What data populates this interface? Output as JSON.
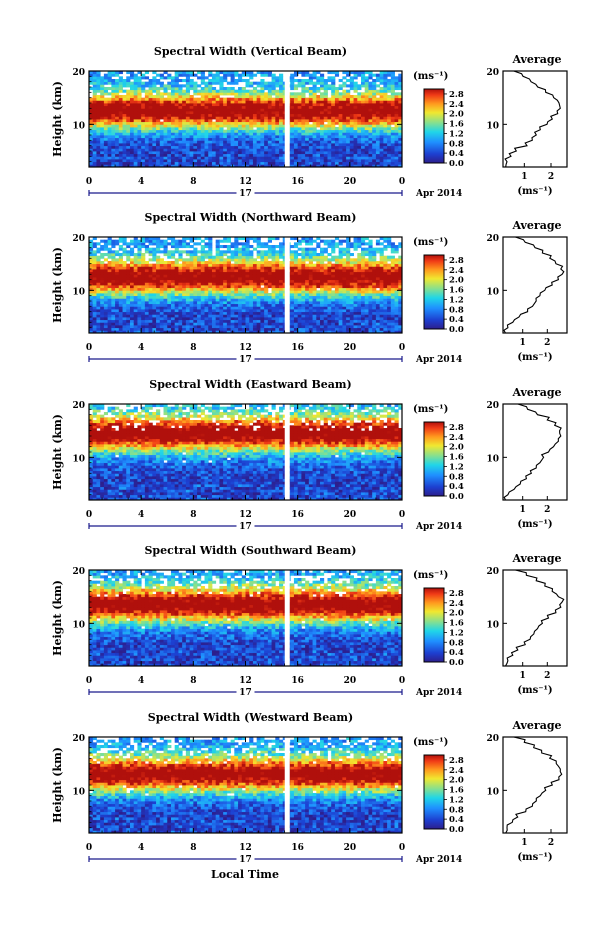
{
  "figure": {
    "xlabel": "Local Time",
    "ylabel": "Height (km)",
    "date_label": "Apr 2014",
    "day_label": "17",
    "unit_label": "(ms⁻¹)",
    "avg_title": "Average",
    "avg_xlabel": "(ms⁻¹)"
  },
  "chart_data": [
    {
      "type": "heatmap",
      "title": "Spectral Width (Vertical Beam)",
      "x_range": [
        0,
        24
      ],
      "x_ticks": [
        "0",
        "4",
        "8",
        "12",
        "16",
        "20",
        "0"
      ],
      "y_range": [
        2,
        20
      ],
      "y_ticks": [
        "10",
        "20"
      ],
      "colorbar_range": [
        0,
        3.0
      ],
      "colorbar_ticks": [
        "0.0",
        "0.4",
        "0.8",
        "1.2",
        "1.6",
        "2.0",
        "2.4",
        "2.8"
      ],
      "data_gap_hours": 15.2,
      "peak_layer_km": 12.5,
      "average_profile": {
        "title": "Average",
        "x_ticks": [
          "1",
          "2"
        ],
        "y_ticks": [
          "10",
          "20"
        ],
        "x_range": [
          0.2,
          2.6
        ],
        "height_km": [
          2,
          3,
          4,
          5,
          6,
          7,
          8,
          9,
          10,
          11,
          12,
          13,
          14,
          15,
          16,
          17,
          18,
          19,
          20
        ],
        "width": [
          0.3,
          0.35,
          0.5,
          0.7,
          1.1,
          1.3,
          1.45,
          1.6,
          1.85,
          2.05,
          2.25,
          2.35,
          2.3,
          2.1,
          1.8,
          1.5,
          1.25,
          0.95,
          0.6
        ]
      }
    },
    {
      "type": "heatmap",
      "title": "Spectral Width (Northward Beam)",
      "x_range": [
        0,
        24
      ],
      "x_ticks": [
        "0",
        "4",
        "8",
        "12",
        "16",
        "20",
        "0"
      ],
      "y_range": [
        2,
        20
      ],
      "y_ticks": [
        "10",
        "20"
      ],
      "colorbar_range": [
        0,
        3.0
      ],
      "colorbar_ticks": [
        "0.0",
        "0.4",
        "0.8",
        "1.2",
        "1.6",
        "2.0",
        "2.4",
        "2.8"
      ],
      "data_gap_hours": 15.2,
      "peak_layer_km": 12.5,
      "average_profile": {
        "title": "Average",
        "x_ticks": [
          "1",
          "2"
        ],
        "y_ticks": [
          "10",
          "20"
        ],
        "x_range": [
          0.2,
          2.8
        ],
        "height_km": [
          2,
          3,
          4,
          5,
          6,
          7,
          8,
          9,
          10,
          11,
          12,
          13,
          14,
          15,
          16,
          17,
          18,
          19,
          20
        ],
        "width": [
          0.3,
          0.4,
          0.6,
          0.85,
          1.2,
          1.4,
          1.55,
          1.7,
          1.9,
          2.2,
          2.45,
          2.6,
          2.55,
          2.35,
          2.1,
          1.8,
          1.5,
          1.1,
          0.7
        ]
      }
    },
    {
      "type": "heatmap",
      "title": "Spectral Width (Eastward Beam)",
      "x_range": [
        0,
        24
      ],
      "x_ticks": [
        "0",
        "4",
        "8",
        "12",
        "16",
        "20",
        "0"
      ],
      "y_range": [
        2,
        20
      ],
      "y_ticks": [
        "10",
        "20"
      ],
      "colorbar_range": [
        0,
        3.0
      ],
      "colorbar_ticks": [
        "0.0",
        "0.4",
        "0.8",
        "1.2",
        "1.6",
        "2.0",
        "2.4",
        "2.8"
      ],
      "data_gap_hours": 15.2,
      "peak_layer_km": 14.5,
      "average_profile": {
        "title": "Average",
        "x_ticks": [
          "1",
          "2"
        ],
        "y_ticks": [
          "10",
          "20"
        ],
        "x_range": [
          0.2,
          2.8
        ],
        "height_km": [
          2,
          3,
          4,
          5,
          6,
          7,
          8,
          9,
          10,
          11,
          12,
          13,
          14,
          15,
          16,
          17,
          18,
          19,
          20
        ],
        "width": [
          0.3,
          0.4,
          0.65,
          0.9,
          1.15,
          1.35,
          1.55,
          1.7,
          1.85,
          2.05,
          2.25,
          2.45,
          2.55,
          2.5,
          2.3,
          2.0,
          1.6,
          1.2,
          0.8
        ]
      }
    },
    {
      "type": "heatmap",
      "title": "Spectral Width (Southward Beam)",
      "x_range": [
        0,
        24
      ],
      "x_ticks": [
        "0",
        "4",
        "8",
        "12",
        "16",
        "20",
        "0"
      ],
      "y_range": [
        2,
        20
      ],
      "y_ticks": [
        "10",
        "20"
      ],
      "colorbar_range": [
        0,
        3.0
      ],
      "colorbar_ticks": [
        "0.0",
        "0.4",
        "0.8",
        "1.2",
        "1.6",
        "2.0",
        "2.4",
        "2.8"
      ],
      "data_gap_hours": 15.2,
      "peak_layer_km": 13.5,
      "average_profile": {
        "title": "Average",
        "x_ticks": [
          "1",
          "2"
        ],
        "y_ticks": [
          "10",
          "20"
        ],
        "x_range": [
          0.2,
          2.8
        ],
        "height_km": [
          2,
          3,
          4,
          5,
          6,
          7,
          8,
          9,
          10,
          11,
          12,
          13,
          14,
          15,
          16,
          17,
          18,
          19,
          20
        ],
        "width": [
          0.3,
          0.4,
          0.6,
          0.8,
          1.1,
          1.3,
          1.45,
          1.6,
          1.8,
          2.05,
          2.35,
          2.55,
          2.6,
          2.45,
          2.2,
          1.9,
          1.55,
          1.15,
          0.7
        ]
      }
    },
    {
      "type": "heatmap",
      "title": "Spectral Width (Westward Beam)",
      "x_range": [
        0,
        24
      ],
      "x_ticks": [
        "0",
        "4",
        "8",
        "12",
        "16",
        "20",
        "0"
      ],
      "y_range": [
        2,
        20
      ],
      "y_ticks": [
        "10",
        "20"
      ],
      "colorbar_range": [
        0,
        3.0
      ],
      "colorbar_ticks": [
        "0.0",
        "0.4",
        "0.8",
        "1.2",
        "1.6",
        "2.0",
        "2.4",
        "2.8"
      ],
      "data_gap_hours": 15.2,
      "peak_layer_km": 13.0,
      "average_profile": {
        "title": "Average",
        "x_ticks": [
          "1",
          "2"
        ],
        "y_ticks": [
          "10",
          "20"
        ],
        "x_range": [
          0.2,
          2.6
        ],
        "height_km": [
          2,
          3,
          4,
          5,
          6,
          7,
          8,
          9,
          10,
          11,
          12,
          13,
          14,
          15,
          16,
          17,
          18,
          19,
          20
        ],
        "width": [
          0.3,
          0.35,
          0.55,
          0.75,
          1.05,
          1.3,
          1.45,
          1.6,
          1.8,
          2.05,
          2.3,
          2.4,
          2.35,
          2.2,
          1.95,
          1.65,
          1.35,
          1.0,
          0.6
        ]
      }
    }
  ]
}
